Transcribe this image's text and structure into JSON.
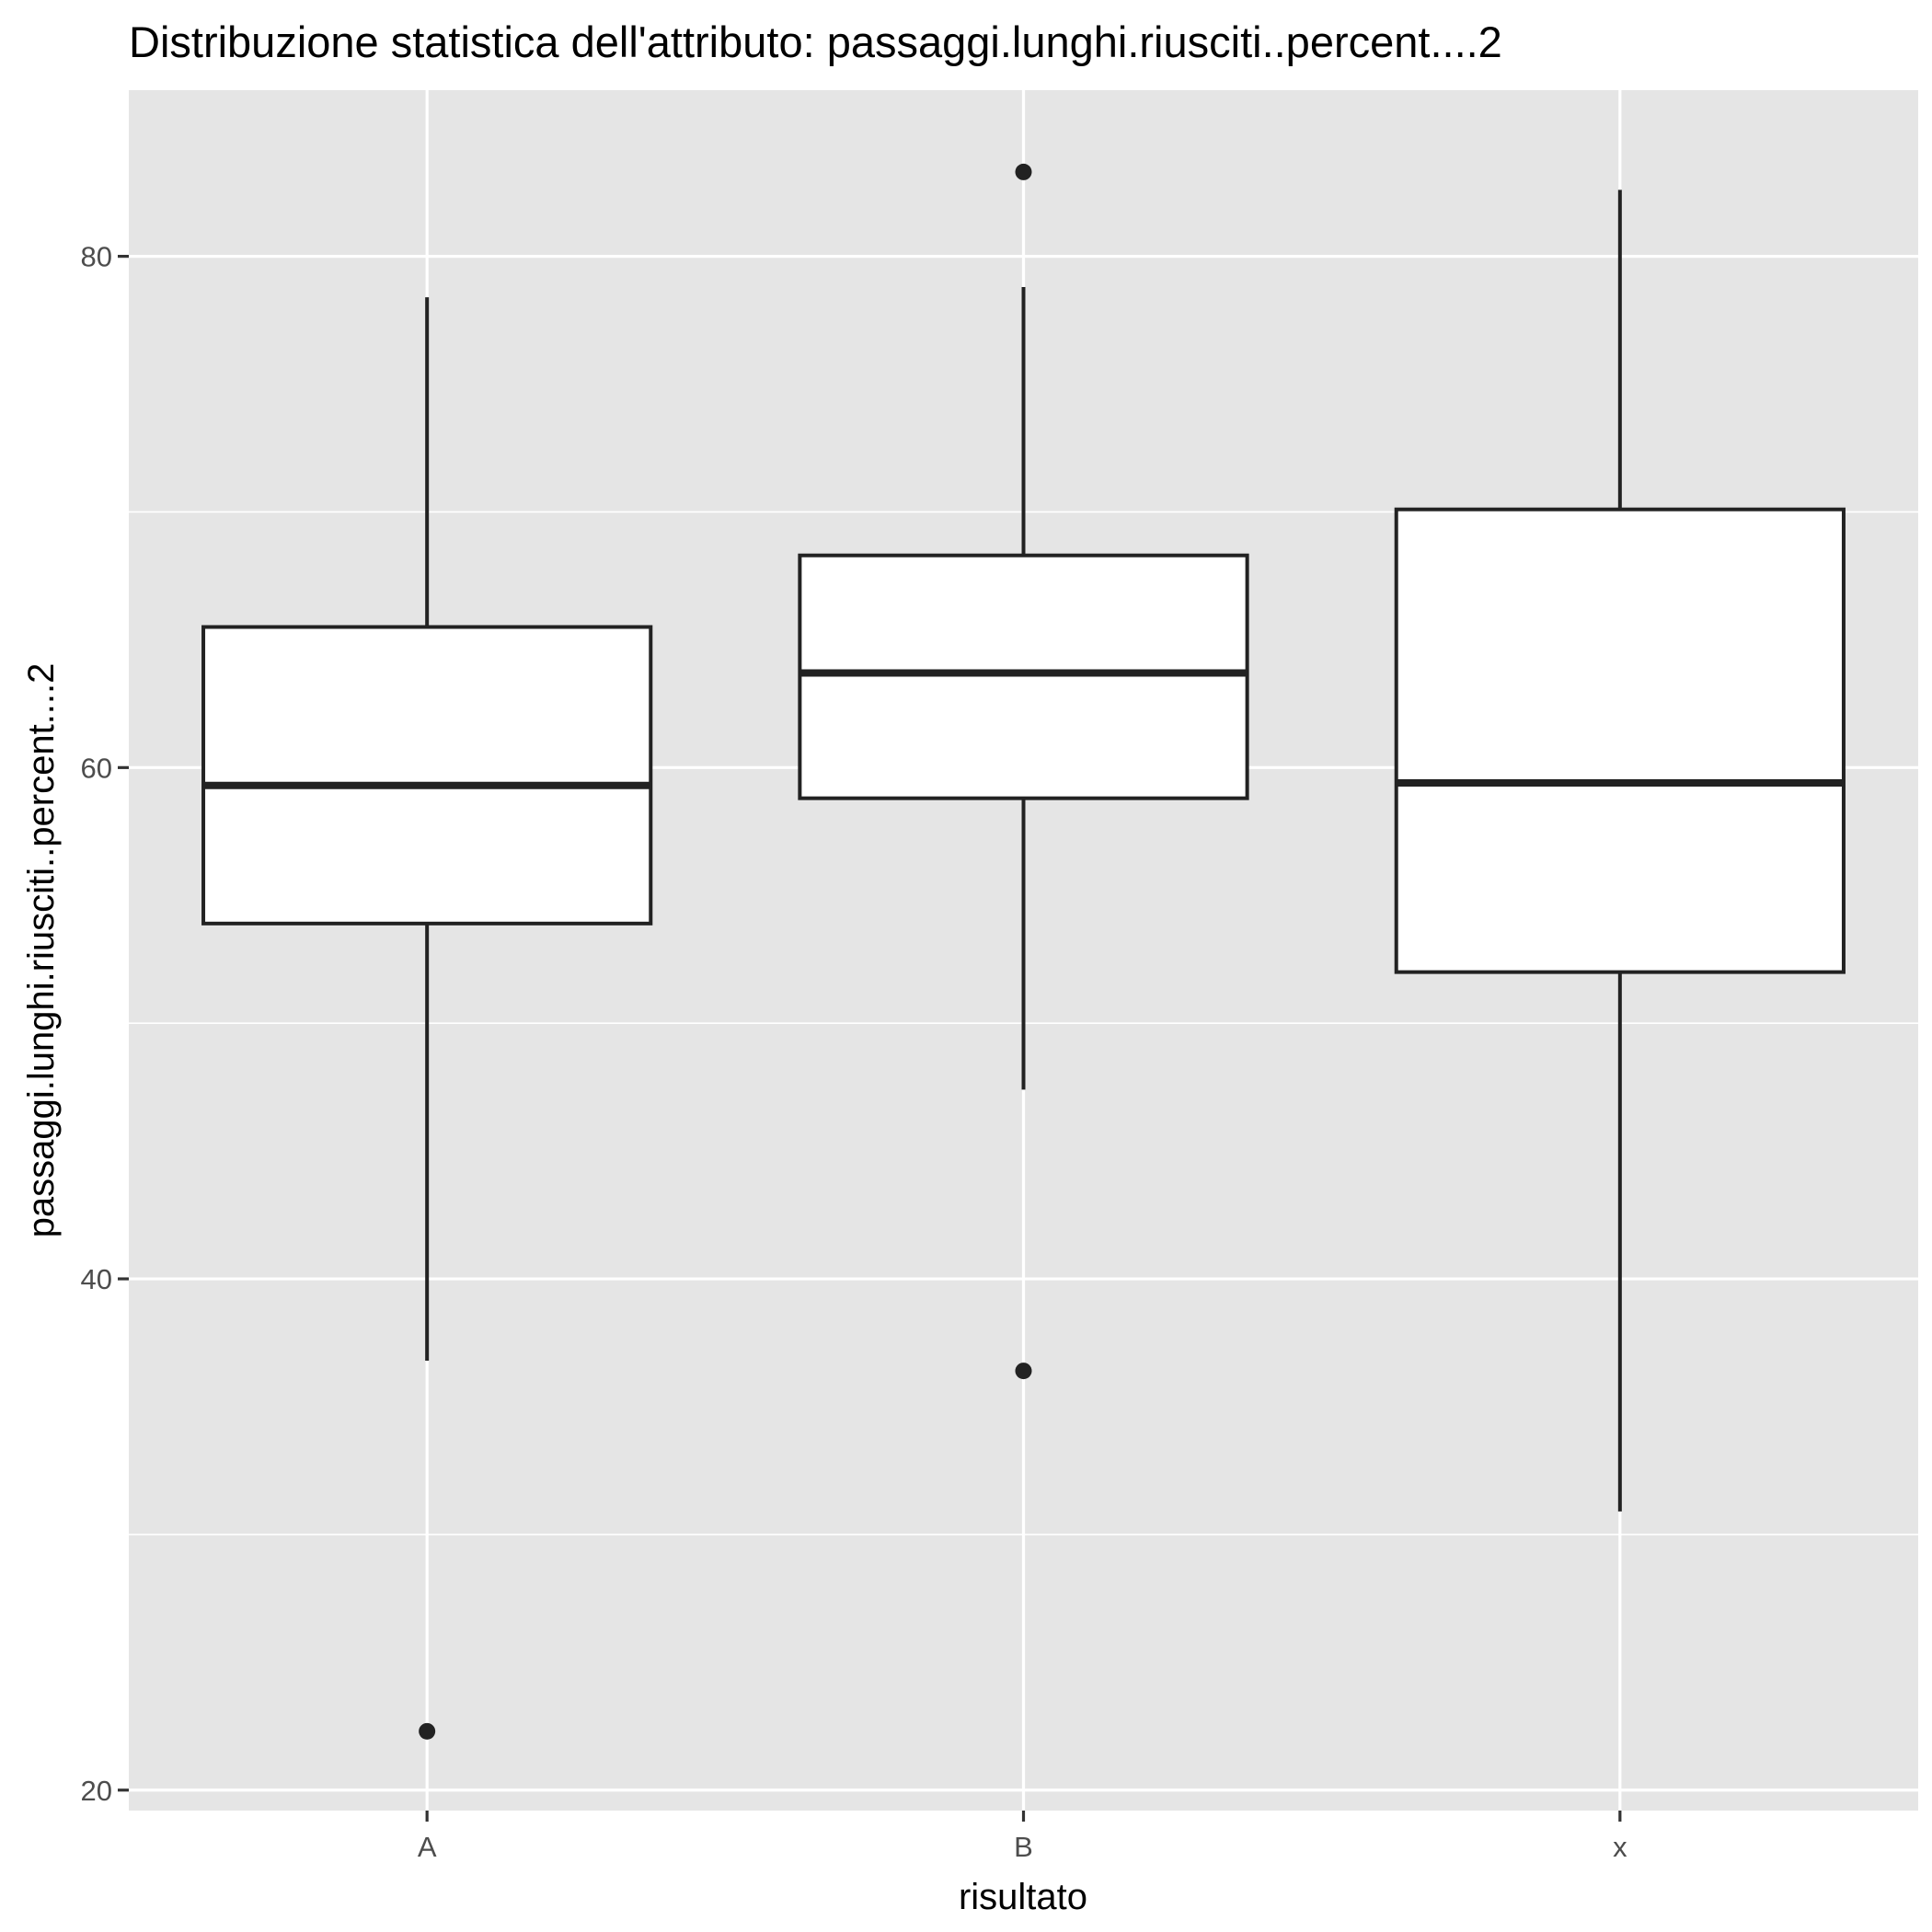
{
  "chart_data": {
    "type": "boxplot",
    "title": "Distribuzione statistica dell'attributo: passaggi.lunghi.riusciti..percent....2",
    "xlabel": "risultato",
    "ylabel": "passaggi.lunghi.riusciti..percent....2",
    "ylim": [
      19.2,
      86.5
    ],
    "yticks": [
      20,
      40,
      60,
      80
    ],
    "yminor": [
      30,
      50,
      70
    ],
    "grid": true,
    "categories": [
      "A",
      "B",
      "x"
    ],
    "boxes": [
      {
        "category": "A",
        "whisker_low": 36.8,
        "q1": 53.9,
        "median": 59.3,
        "q3": 65.5,
        "whisker_high": 78.4,
        "outliers": [
          22.3
        ]
      },
      {
        "category": "B",
        "whisker_low": 47.4,
        "q1": 58.8,
        "median": 63.7,
        "q3": 68.3,
        "whisker_high": 78.8,
        "outliers": [
          83.3,
          36.4
        ]
      },
      {
        "category": "x",
        "whisker_low": 30.9,
        "q1": 52.0,
        "median": 59.4,
        "q3": 70.1,
        "whisker_high": 82.6,
        "outliers": []
      }
    ]
  }
}
